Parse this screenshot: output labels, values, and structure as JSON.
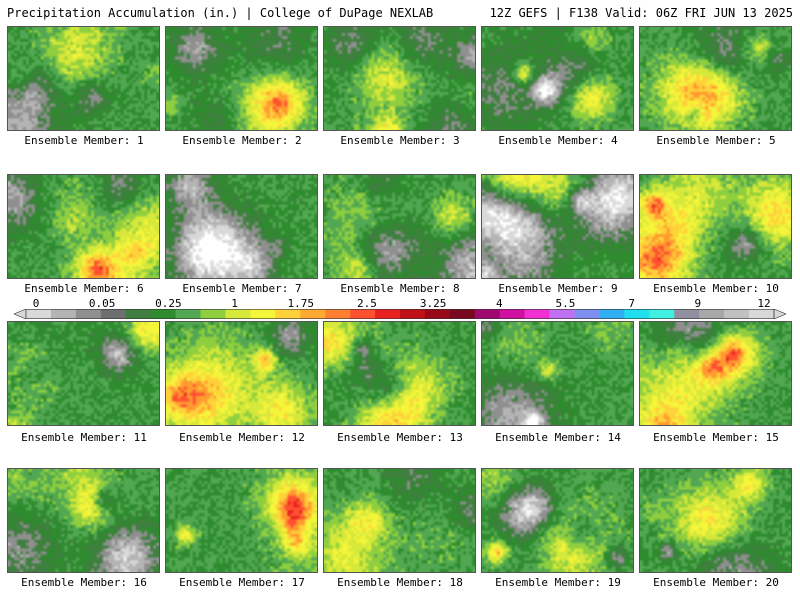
{
  "header": {
    "left": "Precipitation Accumulation (in.) | College of DuPage NEXLAB",
    "right": "12Z GEFS | F138 Valid: 06Z FRI JUN 13 2025"
  },
  "panels": [
    {
      "label": "Ensemble Member: 1"
    },
    {
      "label": "Ensemble Member: 2"
    },
    {
      "label": "Ensemble Member: 3"
    },
    {
      "label": "Ensemble Member: 4"
    },
    {
      "label": "Ensemble Member: 5"
    },
    {
      "label": "Ensemble Member: 6"
    },
    {
      "label": "Ensemble Member: 7"
    },
    {
      "label": "Ensemble Member: 8"
    },
    {
      "label": "Ensemble Member: 9"
    },
    {
      "label": "Ensemble Member: 10"
    },
    {
      "label": "Ensemble Member: 11"
    },
    {
      "label": "Ensemble Member: 12"
    },
    {
      "label": "Ensemble Member: 13"
    },
    {
      "label": "Ensemble Member: 14"
    },
    {
      "label": "Ensemble Member: 15"
    },
    {
      "label": "Ensemble Member: 16"
    },
    {
      "label": "Ensemble Member: 17"
    },
    {
      "label": "Ensemble Member: 18"
    },
    {
      "label": "Ensemble Member: 19"
    },
    {
      "label": "Ensemble Member: 20"
    }
  ],
  "colorbar": {
    "labels": [
      "0",
      "0.05",
      "0.25",
      "1",
      "1.75",
      "2.5",
      "3.25",
      "4",
      "5.5",
      "7",
      "9",
      "12"
    ],
    "colors": [
      "#d9d9d9",
      "#b4b4b4",
      "#8f8f8f",
      "#6e6e6e",
      "#3f7f3f",
      "#2e8b2e",
      "#52a852",
      "#8fcf3f",
      "#d6e83a",
      "#f5f53a",
      "#ffd23a",
      "#ffaa33",
      "#ff8030",
      "#ff5030",
      "#e82020",
      "#c01018",
      "#980818",
      "#780820",
      "#a00870",
      "#d010a0",
      "#f030d0",
      "#c070f0",
      "#8090f0",
      "#30b0f0",
      "#20e0f0",
      "#40f0e0",
      "#9090a0",
      "#a8a8a8",
      "#c0c0c0",
      "#d8d8d8"
    ]
  }
}
